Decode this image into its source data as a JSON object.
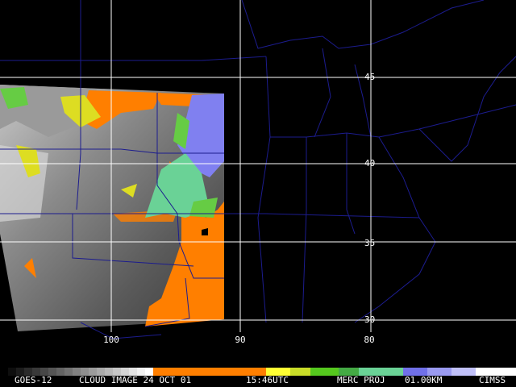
{
  "map": {
    "lat_labels": [
      "45",
      "40",
      "35",
      "30"
    ],
    "lon_labels": [
      "100",
      "90",
      "80"
    ],
    "footer": [
      "GOES-12",
      "CLOUD IMAGE 24 OCT 01",
      "15:46UTC",
      "MERC PROJ",
      "01.00KM",
      "CIMSS"
    ]
  }
}
